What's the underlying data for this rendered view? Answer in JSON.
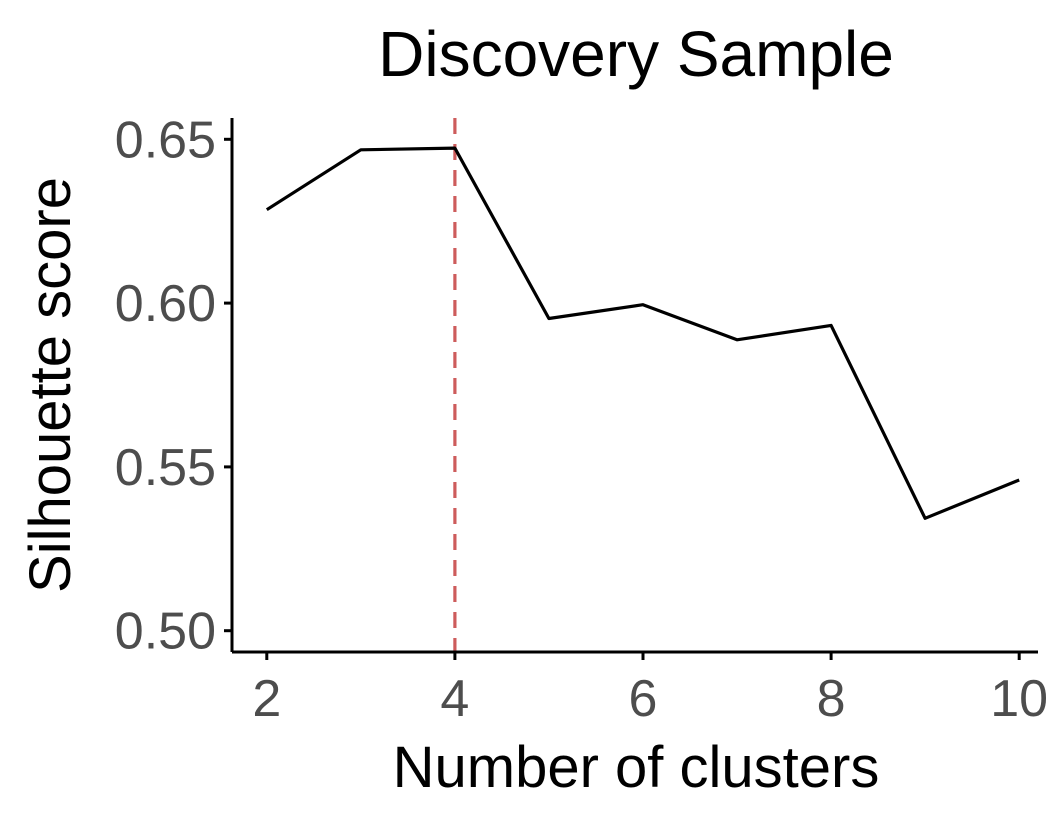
{
  "chart_data": {
    "type": "line",
    "title": "Discovery Sample",
    "xlabel": "Number of clusters",
    "ylabel": "Silhouette score",
    "x": [
      2,
      3,
      4,
      5,
      6,
      7,
      8,
      9,
      10
    ],
    "series": [
      {
        "values": [
          0.6285,
          0.6468,
          0.6473,
          0.5953,
          0.5995,
          0.5888,
          0.5932,
          0.5343,
          0.546
        ]
      }
    ],
    "x_ticks": [
      2,
      4,
      6,
      8,
      10
    ],
    "x_tick_labels": [
      "2",
      "4",
      "6",
      "8",
      "10"
    ],
    "y_ticks": [
      0.5,
      0.55,
      0.6,
      0.65
    ],
    "y_tick_labels": [
      "0.50",
      "0.55",
      "0.60",
      "0.65"
    ],
    "xlim": [
      1.63,
      10.2
    ],
    "ylim": [
      0.4935,
      0.6565
    ],
    "reference_line": {
      "axis": "x",
      "value": 4,
      "color": "#cd5c5c",
      "style": "dashed"
    },
    "grid": false,
    "line_color": "#000000"
  }
}
